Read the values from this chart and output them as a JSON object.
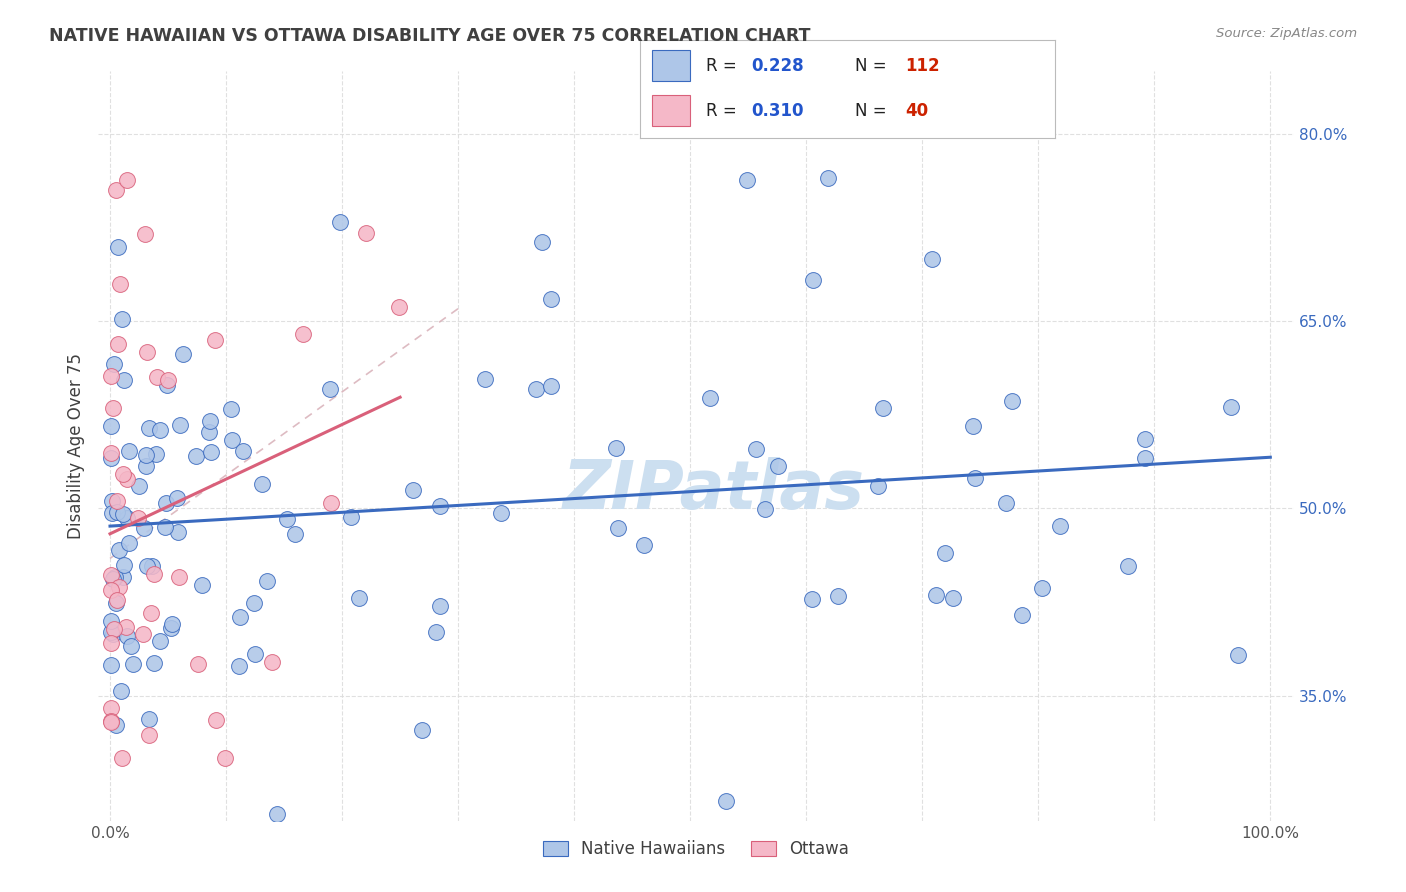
{
  "title": "NATIVE HAWAIIAN VS OTTAWA DISABILITY AGE OVER 75 CORRELATION CHART",
  "source": "Source: ZipAtlas.com",
  "ylabel": "Disability Age Over 75",
  "legend1_label": "Native Hawaiians",
  "legend2_label": "Ottawa",
  "R_blue": 0.228,
  "N_blue": 112,
  "R_pink": 0.31,
  "N_pink": 40,
  "blue_color": "#aec6e8",
  "pink_color": "#f5b8c8",
  "line_blue": "#3a6abf",
  "line_pink": "#d9607a",
  "diag_line_color": "#d8b0b8",
  "watermark_color": "#ccdff0",
  "title_color": "#404040",
  "legend_R_color": "#2255cc",
  "legend_N_color": "#cc2200",
  "ytick_color": "#3a6abf",
  "grid_color": "#dddddd",
  "xlim": [
    0,
    100
  ],
  "ylim": [
    25,
    85
  ],
  "ytick_vals": [
    35,
    50,
    65,
    80
  ],
  "ytick_labels": [
    "35.0%",
    "50.0%",
    "65.0%",
    "80.0%"
  ]
}
